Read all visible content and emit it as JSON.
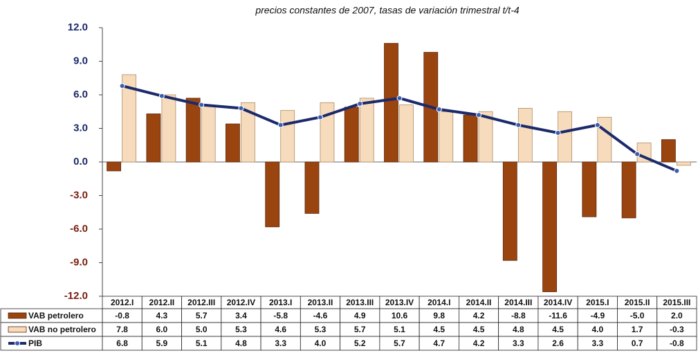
{
  "chart_data": {
    "type": "bar",
    "title": "precios constantes de 2007, tasas de variación trimestral t/t-4",
    "categories": [
      "2012.I",
      "2012.II",
      "2012.III",
      "2012.IV",
      "2013.I",
      "2013.II",
      "2013.III",
      "2013.IV",
      "2014.I",
      "2014.II",
      "2014.III",
      "2014.IV",
      "2015.I",
      "2015.II",
      "2015.III"
    ],
    "series": [
      {
        "name": "VAB petrolero",
        "type": "bar",
        "color": "#9a4410",
        "values": [
          -0.8,
          4.3,
          5.7,
          3.4,
          -5.8,
          -4.6,
          4.9,
          10.6,
          9.8,
          4.2,
          -8.8,
          -11.6,
          -4.9,
          -5.0,
          2.0
        ],
        "value_labels": [
          "-0.8",
          "4.3",
          "5.7",
          "3.4",
          "-5.8",
          "-4.6",
          "4.9",
          "10.6",
          "9.8",
          "4.2",
          "-8.8",
          "-11.6",
          "-4.9",
          "-5.0",
          "2.0"
        ]
      },
      {
        "name": "VAB no petrolero",
        "type": "bar",
        "color": "#f6dcbc",
        "values": [
          7.8,
          6.0,
          5.0,
          5.3,
          4.6,
          5.3,
          5.7,
          5.1,
          4.5,
          4.5,
          4.8,
          4.5,
          4.0,
          1.7,
          -0.3
        ],
        "value_labels": [
          "7.8",
          "6.0",
          "5.0",
          "5.3",
          "4.6",
          "5.3",
          "5.7",
          "5.1",
          "4.5",
          "4.5",
          "4.8",
          "4.5",
          "4.0",
          "1.7",
          "-0.3"
        ]
      },
      {
        "name": "PIB",
        "type": "line",
        "color": "#1c2a6b",
        "values": [
          6.8,
          5.9,
          5.1,
          4.8,
          3.3,
          4.0,
          5.2,
          5.7,
          4.7,
          4.2,
          3.3,
          2.6,
          3.3,
          0.7,
          -0.8
        ],
        "value_labels": [
          "6.8",
          "5.9",
          "5.1",
          "4.8",
          "3.3",
          "4.0",
          "5.2",
          "5.7",
          "4.7",
          "4.2",
          "3.3",
          "2.6",
          "3.3",
          "0.7",
          "-0.8"
        ]
      }
    ],
    "ylim": [
      -12,
      12
    ],
    "yticks": [
      {
        "value": 12,
        "label": "12.0"
      },
      {
        "value": 9,
        "label": "9.0"
      },
      {
        "value": 6,
        "label": "6.0"
      },
      {
        "value": 3,
        "label": "3.0"
      },
      {
        "value": 0,
        "label": "0.0"
      },
      {
        "value": -3,
        "label": "-3.0"
      },
      {
        "value": -6,
        "label": "-6.0"
      },
      {
        "value": -9,
        "label": "-9.0"
      },
      {
        "value": -12,
        "label": "-12.0"
      }
    ],
    "grid": false
  }
}
